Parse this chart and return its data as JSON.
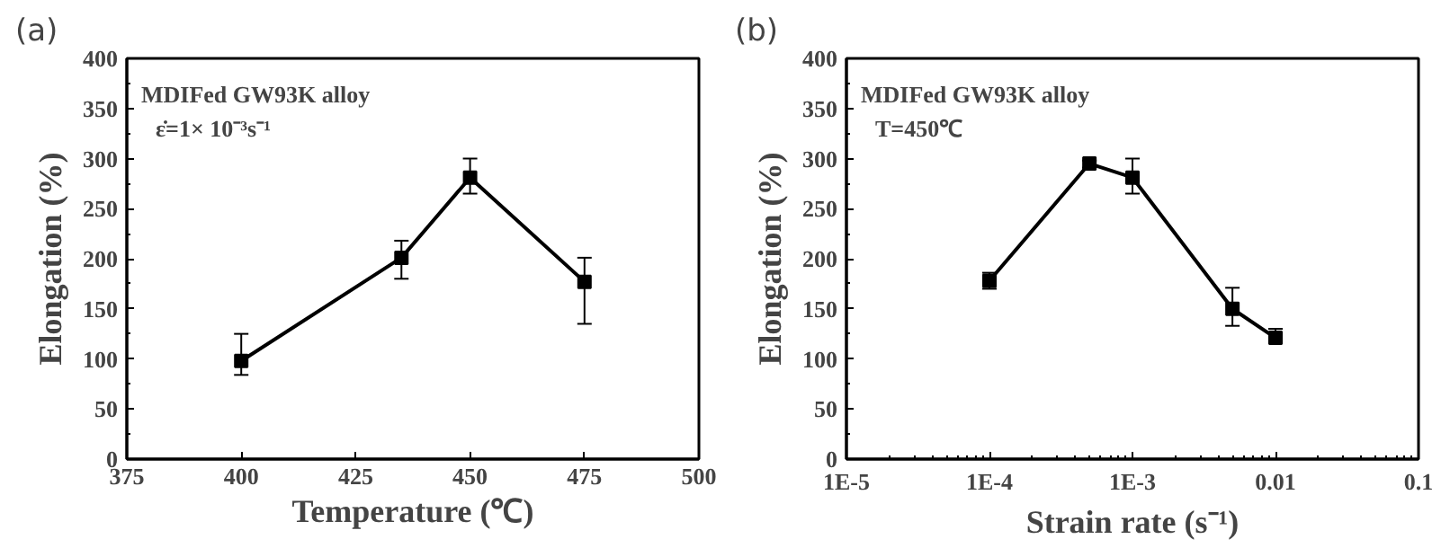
{
  "chart_data": [
    {
      "type": "line",
      "title": "(a)",
      "xlabel": "Temperature (℃)",
      "ylabel": "Elongation (%)",
      "annotations": [
        "MDIFed GW93K alloy",
        "ε̇=1× 10⁻³s⁻¹"
      ],
      "x": [
        400,
        435,
        450,
        475
      ],
      "series": [
        {
          "color": "#000000",
          "values": [
            98,
            201,
            281,
            177
          ],
          "errors": [
            [
              84,
              125
            ],
            [
              180,
              218
            ],
            [
              265,
              300
            ],
            [
              135,
              201
            ]
          ]
        }
      ],
      "xlim": [
        375,
        500
      ],
      "xticks": [
        375,
        400,
        425,
        450,
        475,
        500
      ],
      "ylim": [
        0,
        400
      ],
      "yticks": [
        0,
        50,
        100,
        150,
        200,
        250,
        300,
        350,
        400
      ],
      "grid": false,
      "marker": "square",
      "line_style": "solid"
    },
    {
      "type": "line",
      "title": "(b)",
      "xlabel": "Strain rate (s⁻¹)",
      "ylabel": "Elongation (%)",
      "annotations": [
        "MDIFed GW93K alloy",
        "T=450℃"
      ],
      "x": [
        0.0001,
        0.0005,
        0.001,
        0.005,
        0.01
      ],
      "series": [
        {
          "color": "#000000",
          "values": [
            178,
            295,
            281,
            150,
            121
          ],
          "errors": [
            [
              170,
              186
            ],
            [
              291,
              298
            ],
            [
              265,
              300
            ],
            [
              133,
              171
            ],
            [
              116,
              130
            ]
          ]
        }
      ],
      "log": "x",
      "xlim": [
        1e-05,
        0.1
      ],
      "xticks": [
        {
          "value": 1e-05,
          "label": "1E-5"
        },
        {
          "value": 0.0001,
          "label": "1E-4"
        },
        {
          "value": 0.001,
          "label": "1E-3"
        },
        0.01,
        0.1
      ],
      "ylim": [
        0,
        400
      ],
      "yticks": [
        0,
        50,
        100,
        150,
        200,
        250,
        300,
        350,
        400
      ],
      "grid": false,
      "marker": "square",
      "line_style": "solid"
    }
  ]
}
